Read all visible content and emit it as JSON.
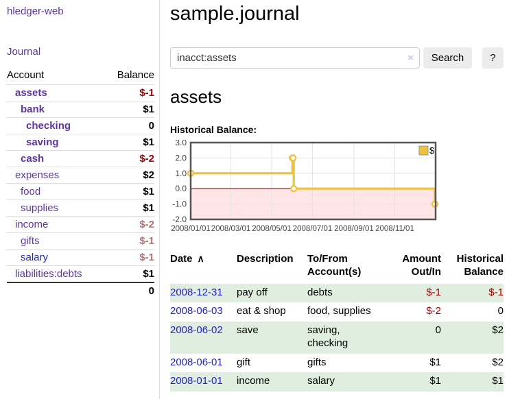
{
  "colors": {
    "link_purple": "#5e35a5",
    "link_blue": "#2323cc",
    "negative_strong": "#a40000",
    "negative_muted": "#b76f6f",
    "row_green": "#dfeede",
    "chart_series": "#edc240",
    "chart_negative_fill": "rgba(255,0,0,0.10)",
    "chart_zero_line": "#990000",
    "chart_border": "#545454",
    "chart_grid": "#e3e3e3"
  },
  "sidebar": {
    "brand": "hledger-web",
    "nav": {
      "journal": "Journal"
    },
    "accounts_table": {
      "headers": {
        "account": "Account",
        "balance": "Balance"
      },
      "rows": [
        {
          "name": "assets",
          "indent": 1,
          "bold": true,
          "link": "purple",
          "balance": "$-1",
          "bal_class": "neg"
        },
        {
          "name": "bank",
          "indent": 2,
          "bold": true,
          "link": "purple",
          "balance": "$1",
          "bal_class": "pos"
        },
        {
          "name": "checking",
          "indent": 3,
          "bold": true,
          "link": "purple",
          "balance": "0",
          "bal_class": "pos"
        },
        {
          "name": "saving",
          "indent": 3,
          "bold": true,
          "link": "purple",
          "balance": "$1",
          "bal_class": "pos"
        },
        {
          "name": "cash",
          "indent": 2,
          "bold": true,
          "link": "purple",
          "balance": "$-2",
          "bal_class": "neg"
        },
        {
          "name": "expenses",
          "indent": 1,
          "bold": false,
          "link": "purple",
          "balance": "$2",
          "bal_class": "pos"
        },
        {
          "name": "food",
          "indent": 2,
          "bold": false,
          "link": "purple",
          "balance": "$1",
          "bal_class": "pos"
        },
        {
          "name": "supplies",
          "indent": 2,
          "bold": false,
          "link": "purple",
          "balance": "$1",
          "bal_class": "pos"
        },
        {
          "name": "income",
          "indent": 1,
          "bold": false,
          "link": "purple",
          "balance": "$-2",
          "bal_class": "negdim"
        },
        {
          "name": "gifts",
          "indent": 2,
          "bold": false,
          "link": "purple",
          "balance": "$-1",
          "bal_class": "negdim"
        },
        {
          "name": "salary",
          "indent": 2,
          "bold": false,
          "link": "blue",
          "balance": "$-1",
          "bal_class": "negdim"
        },
        {
          "name": "liabilities:debts",
          "indent": 1,
          "bold": false,
          "link": "purple",
          "balance": "$1",
          "bal_class": "pos"
        }
      ],
      "total": "0"
    }
  },
  "main": {
    "title": "sample.journal",
    "search": {
      "value": "inacct:assets",
      "clear_icon": "×",
      "button": "Search",
      "help_button": "?"
    },
    "account_heading": "assets",
    "chart_label": "Historical Balance:"
  },
  "chart_data": {
    "type": "line",
    "mode": "step-after",
    "series": [
      {
        "name": "$",
        "points": [
          [
            "2008-01-01",
            1
          ],
          [
            "2008-06-01",
            2
          ],
          [
            "2008-06-02",
            2
          ],
          [
            "2008-06-03",
            0
          ],
          [
            "2008-12-31",
            -1
          ]
        ]
      }
    ],
    "x_ticks": [
      "2008/01/01",
      "2008/03/01",
      "2008/05/01",
      "2008/07/01",
      "2008/09/01",
      "2008/11/01"
    ],
    "y_ticks": [
      3.0,
      2.0,
      1.0,
      0.0,
      -1.0,
      -2.0
    ],
    "ylim": [
      -2,
      3
    ],
    "xlim": [
      "2008-01-01",
      "2009-01-01"
    ],
    "grid": true,
    "legend": {
      "label": "$",
      "position": "top-right"
    },
    "negative_region_shaded": true
  },
  "register_table": {
    "headers": [
      {
        "key": "date",
        "label": "Date",
        "sort_icon": "∧",
        "align": "left"
      },
      {
        "key": "description",
        "label": "Description",
        "align": "left"
      },
      {
        "key": "accounts",
        "label": "To/From Account(s)",
        "align": "left"
      },
      {
        "key": "amount",
        "label": "Amount Out/In",
        "align": "right"
      },
      {
        "key": "balance",
        "label": "Historical Balance",
        "align": "right"
      }
    ],
    "rows": [
      {
        "date": "2008-12-31",
        "description": "pay off",
        "accounts": "debts",
        "amount": "$-1",
        "amount_neg": true,
        "balance": "$-1",
        "balance_neg": true
      },
      {
        "date": "2008-06-03",
        "description": "eat & shop",
        "accounts": "food, supplies",
        "amount": "$-2",
        "amount_neg": true,
        "balance": "0",
        "balance_neg": false
      },
      {
        "date": "2008-06-02",
        "description": "save",
        "accounts": "saving,\nchecking",
        "amount": "0",
        "amount_neg": false,
        "balance": "$2",
        "balance_neg": false
      },
      {
        "date": "2008-06-01",
        "description": "gift",
        "accounts": "gifts",
        "amount": "$1",
        "amount_neg": false,
        "balance": "$2",
        "balance_neg": false
      },
      {
        "date": "2008-01-01",
        "description": "income",
        "accounts": "salary",
        "amount": "$1",
        "amount_neg": false,
        "balance": "$1",
        "balance_neg": false
      }
    ]
  }
}
